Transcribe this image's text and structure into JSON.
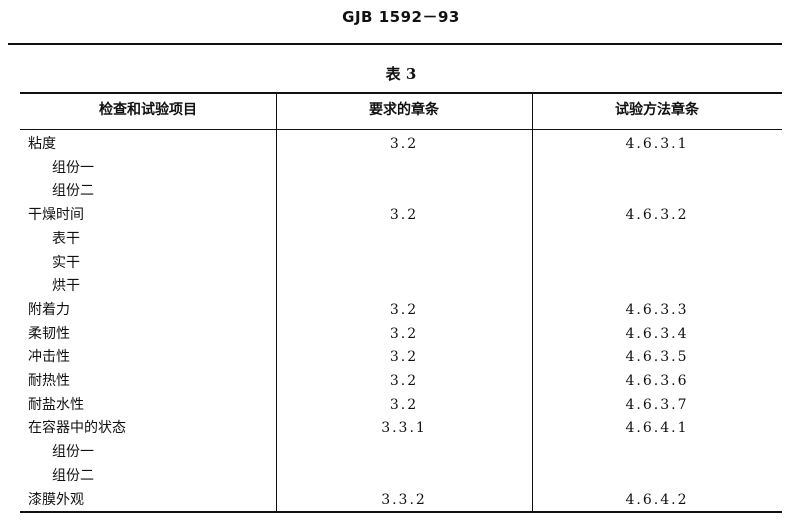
{
  "header": {
    "doc_id": "GJB 1592－93"
  },
  "table": {
    "caption": "表 3",
    "columns": [
      "检查和试验项目",
      "要求的章条",
      "试验方法章条"
    ],
    "rows": [
      {
        "item": "粘度",
        "req": "3.2",
        "method": "4.6.3.1",
        "indent": false
      },
      {
        "item": "组份一",
        "req": "",
        "method": "",
        "indent": true
      },
      {
        "item": "组份二",
        "req": "",
        "method": "",
        "indent": true
      },
      {
        "item": "干燥时间",
        "req": "3.2",
        "method": "4.6.3.2",
        "indent": false
      },
      {
        "item": "表干",
        "req": "",
        "method": "",
        "indent": true
      },
      {
        "item": "实干",
        "req": "",
        "method": "",
        "indent": true
      },
      {
        "item": "烘干",
        "req": "",
        "method": "",
        "indent": true
      },
      {
        "item": "附着力",
        "req": "3.2",
        "method": "4.6.3.3",
        "indent": false
      },
      {
        "item": "柔韧性",
        "req": "3.2",
        "method": "4.6.3.4",
        "indent": false
      },
      {
        "item": "冲击性",
        "req": "3.2",
        "method": "4.6.3.5",
        "indent": false
      },
      {
        "item": "耐热性",
        "req": "3.2",
        "method": "4.6.3.6",
        "indent": false
      },
      {
        "item": "耐盐水性",
        "req": "3.2",
        "method": "4.6.3.7",
        "indent": false
      },
      {
        "item": "在容器中的状态",
        "req": "3.3.1",
        "method": "4.6.4.1",
        "indent": false
      },
      {
        "item": "组份一",
        "req": "",
        "method": "",
        "indent": true
      },
      {
        "item": "组份二",
        "req": "",
        "method": "",
        "indent": true
      },
      {
        "item": "漆膜外观",
        "req": "3.3.2",
        "method": "4.6.4.2",
        "indent": false
      }
    ]
  }
}
